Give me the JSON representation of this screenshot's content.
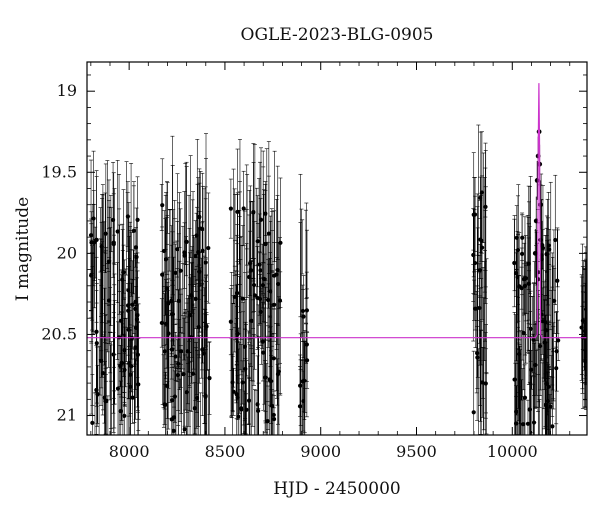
{
  "chart_data": {
    "type": "scatter",
    "title": "OGLE-2023-BLG-0905",
    "xlabel": "HJD - 2450000",
    "ylabel": "I magnitude",
    "xlim": [
      7780,
      10390
    ],
    "ylim": [
      21.12,
      18.82
    ],
    "y_inverted": true,
    "x_ticks": [
      8000,
      8500,
      9000,
      9500,
      10000
    ],
    "y_ticks": [
      19,
      19.5,
      20,
      20.5,
      21
    ],
    "x_tick_labels": [
      "8000",
      "8500",
      "9000",
      "9500",
      "10000"
    ],
    "y_tick_labels": [
      "19",
      "19.5",
      "20",
      "20.5",
      "21"
    ],
    "grid": false,
    "baseline_magnitude": 20.52,
    "baseline_color": "#cc33cc",
    "point_color": "#000000",
    "season_bands": [
      {
        "x_start": 7800,
        "x_end": 8050,
        "mag_min": 19.75,
        "mag_max": 21.1
      },
      {
        "x_start": 8170,
        "x_end": 8420,
        "mag_min": 19.7,
        "mag_max": 21.1
      },
      {
        "x_start": 8530,
        "x_end": 8790,
        "mag_min": 19.7,
        "mag_max": 21.1
      },
      {
        "x_start": 8890,
        "x_end": 8930,
        "mag_min": 19.95,
        "mag_max": 21.1
      },
      {
        "x_start": 9795,
        "x_end": 9870,
        "mag_min": 19.6,
        "mag_max": 21.0
      },
      {
        "x_start": 10010,
        "x_end": 10240,
        "mag_min": 19.9,
        "mag_max": 21.1
      },
      {
        "x_start": 10360,
        "x_end": 10385,
        "mag_min": 20.3,
        "mag_max": 20.7
      }
    ],
    "event_points": [
      {
        "x": 10120,
        "y": 20.0,
        "err": 0.15
      },
      {
        "x": 10125,
        "y": 19.8,
        "err": 0.15
      },
      {
        "x": 10130,
        "y": 19.55,
        "err": 0.12
      },
      {
        "x": 10135,
        "y": 19.4,
        "err": 0.12
      },
      {
        "x": 10140,
        "y": 19.25,
        "err": 0.15
      },
      {
        "x": 10143,
        "y": 19.45,
        "err": 0.12
      },
      {
        "x": 10148,
        "y": 19.7,
        "err": 0.15
      },
      {
        "x": 10155,
        "y": 19.95,
        "err": 0.15
      }
    ],
    "model_curve": [
      [
        7780,
        20.52
      ],
      [
        10120,
        20.52
      ],
      [
        10130,
        20.5
      ],
      [
        10133,
        20.0
      ],
      [
        10136,
        19.3
      ],
      [
        10139,
        18.95
      ],
      [
        10142,
        19.3
      ],
      [
        10145,
        20.0
      ],
      [
        10148,
        20.5
      ],
      [
        10155,
        20.52
      ],
      [
        10390,
        20.52
      ]
    ]
  }
}
